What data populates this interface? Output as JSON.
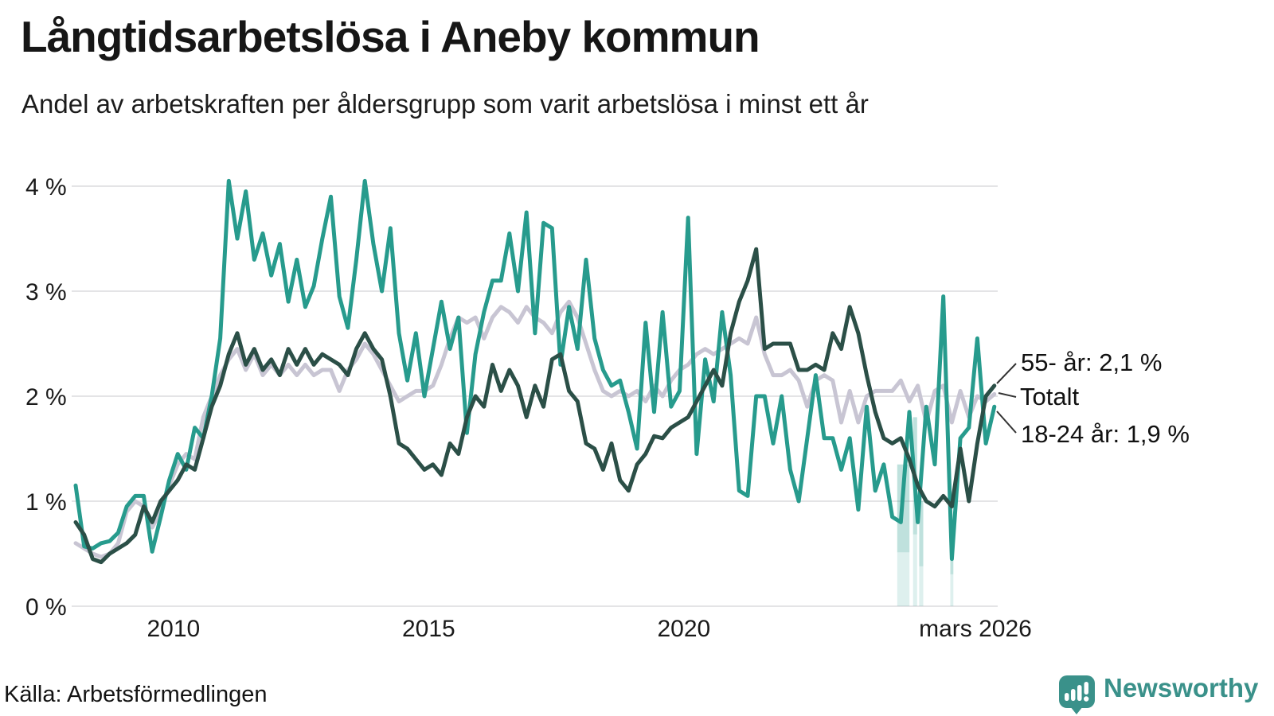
{
  "header": {
    "title": "Långtidsarbetslösa i Aneby kommun",
    "subtitle": "Andel av arbetskraften per åldersgrupp som varit arbetslösa i minst ett år"
  },
  "footer": {
    "source": "Källa: Arbetsförmedlingen",
    "brand": "Newsworthy",
    "brand_icon": "newsworthy-speech-bubble-bar-chart-icon"
  },
  "colors": {
    "teal": "#279b8d",
    "dark": "#2b4f47",
    "gray": "#c8c5d3",
    "grid": "#e4e4e6",
    "text": "#1a1a1a",
    "brand": "#3a918a",
    "uncertainty": "rgba(42,157,143,0.30)"
  },
  "chart_data": {
    "type": "line",
    "title": "Långtidsarbetslösa i Aneby kommun",
    "subtitle": "Andel av arbetskraften per åldersgrupp som varit arbetslösa i minst ett år",
    "unit": "%",
    "x_start_year": 2008.083,
    "x_step_years": 0.1667,
    "x_end_year": 2026.083,
    "x_end_label": "mars 2026",
    "ylim": [
      0,
      4.3
    ],
    "grid": true,
    "y_ticks": [
      "0 %",
      "1 %",
      "2 %",
      "3 %",
      "4 %"
    ],
    "x_ticks": [
      {
        "year": 2010,
        "label": "2010"
      },
      {
        "year": 2015,
        "label": "2015"
      },
      {
        "year": 2020,
        "label": "2020"
      },
      {
        "year": 2026.083,
        "label": "mars 2026"
      }
    ],
    "legend_position": "end-of-line-labels-right",
    "series": [
      {
        "id": "totalt",
        "name": "Totalt",
        "color_key": "gray",
        "end_label": "Totalt",
        "end_value": 2.0,
        "values": [
          0.6,
          0.55,
          0.5,
          0.47,
          0.5,
          0.6,
          0.9,
          1.0,
          0.95,
          0.75,
          0.9,
          1.15,
          1.35,
          1.45,
          1.4,
          1.8,
          2.0,
          2.2,
          2.35,
          2.45,
          2.25,
          2.4,
          2.2,
          2.3,
          2.2,
          2.3,
          2.2,
          2.3,
          2.2,
          2.25,
          2.25,
          2.05,
          2.25,
          2.35,
          2.5,
          2.4,
          2.25,
          2.1,
          1.95,
          2.0,
          2.05,
          2.05,
          2.1,
          2.3,
          2.55,
          2.75,
          2.7,
          2.75,
          2.55,
          2.75,
          2.85,
          2.8,
          2.7,
          2.85,
          2.75,
          2.7,
          2.6,
          2.8,
          2.9,
          2.75,
          2.5,
          2.25,
          2.05,
          2.0,
          2.05,
          2.0,
          2.05,
          1.95,
          2.1,
          2.0,
          2.15,
          2.25,
          2.3,
          2.4,
          2.45,
          2.4,
          2.45,
          2.5,
          2.55,
          2.5,
          2.75,
          2.4,
          2.2,
          2.2,
          2.25,
          2.15,
          1.9,
          2.15,
          2.2,
          2.15,
          1.75,
          2.05,
          1.75,
          2.0,
          2.05,
          2.05,
          2.05,
          2.15,
          1.95,
          2.1,
          1.75,
          2.05,
          2.1,
          1.75,
          2.05,
          1.8,
          2.0,
          1.95,
          2.02
        ]
      },
      {
        "id": "18-24",
        "name": "18-24 år",
        "color_key": "teal",
        "end_label": "18-24 år: 1,9 %",
        "end_value": 1.9,
        "values": [
          1.15,
          0.57,
          0.55,
          0.6,
          0.62,
          0.7,
          0.95,
          1.05,
          1.05,
          0.52,
          0.85,
          1.2,
          1.45,
          1.3,
          1.7,
          1.6,
          2.0,
          2.55,
          4.05,
          3.5,
          3.95,
          3.3,
          3.55,
          3.15,
          3.45,
          2.9,
          3.3,
          2.85,
          3.05,
          3.5,
          3.9,
          2.95,
          2.65,
          3.3,
          4.05,
          3.45,
          3.0,
          3.6,
          2.6,
          2.15,
          2.6,
          2.0,
          2.45,
          2.9,
          2.45,
          2.75,
          1.65,
          2.4,
          2.8,
          3.1,
          3.1,
          3.55,
          3.0,
          3.75,
          2.6,
          3.65,
          3.6,
          2.3,
          2.85,
          2.45,
          3.3,
          2.55,
          2.25,
          2.1,
          2.15,
          1.85,
          1.5,
          2.7,
          1.85,
          2.8,
          1.9,
          2.05,
          3.7,
          1.45,
          2.35,
          1.95,
          2.8,
          2.2,
          1.1,
          1.05,
          2.0,
          2.0,
          1.55,
          2.0,
          1.3,
          1.0,
          1.6,
          2.2,
          1.6,
          1.6,
          1.3,
          1.6,
          0.92,
          1.9,
          1.1,
          1.35,
          0.85,
          0.8,
          1.85,
          0.8,
          1.9,
          1.35,
          2.95,
          0.45,
          1.6,
          1.7,
          2.55,
          1.55,
          1.9
        ]
      },
      {
        "id": "55plus",
        "name": "55- år",
        "color_key": "dark",
        "end_label": "55- år: 2,1 %",
        "end_value": 2.1,
        "values": [
          0.8,
          0.68,
          0.45,
          0.42,
          0.5,
          0.55,
          0.6,
          0.68,
          0.95,
          0.8,
          1.0,
          1.1,
          1.2,
          1.35,
          1.3,
          1.6,
          1.9,
          2.1,
          2.4,
          2.6,
          2.3,
          2.45,
          2.25,
          2.35,
          2.2,
          2.45,
          2.3,
          2.45,
          2.3,
          2.4,
          2.35,
          2.3,
          2.2,
          2.45,
          2.6,
          2.45,
          2.35,
          2.0,
          1.55,
          1.5,
          1.4,
          1.3,
          1.35,
          1.25,
          1.55,
          1.45,
          1.8,
          2.0,
          1.9,
          2.3,
          2.05,
          2.25,
          2.1,
          1.8,
          2.1,
          1.9,
          2.35,
          2.4,
          2.05,
          1.95,
          1.55,
          1.5,
          1.3,
          1.55,
          1.2,
          1.1,
          1.35,
          1.45,
          1.62,
          1.6,
          1.7,
          1.75,
          1.8,
          1.95,
          2.1,
          2.25,
          2.1,
          2.6,
          2.9,
          3.1,
          3.4,
          2.45,
          2.5,
          2.5,
          2.5,
          2.25,
          2.25,
          2.3,
          2.25,
          2.6,
          2.45,
          2.85,
          2.6,
          2.2,
          1.85,
          1.6,
          1.55,
          1.6,
          1.4,
          1.15,
          1.0,
          0.95,
          1.05,
          0.95,
          1.5,
          1.0,
          1.55,
          2.0,
          2.1
        ]
      }
    ],
    "uncertainty_bars": [
      {
        "from": 2024.18,
        "to": 2024.42,
        "top": 1.35
      },
      {
        "from": 2024.49,
        "to": 2024.57,
        "top": 1.8
      },
      {
        "from": 2024.61,
        "to": 2024.69,
        "top": 1.0
      },
      {
        "from": 2025.22,
        "to": 2025.28,
        "top": 0.8
      }
    ]
  }
}
